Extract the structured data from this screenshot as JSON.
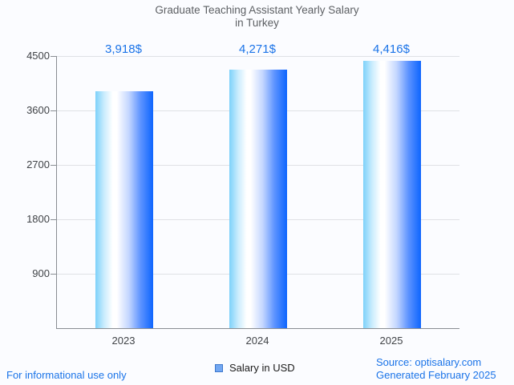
{
  "title": {
    "line1": "Graduate Teaching Assistant Yearly Salary",
    "line2": "in Turkey"
  },
  "chart_data": {
    "type": "bar",
    "title": "Graduate Teaching Assistant Yearly Salary in Turkey",
    "categories": [
      "2023",
      "2024",
      "2025"
    ],
    "values": [
      3918,
      4271,
      4416
    ],
    "value_labels": [
      "3,918$",
      "4,271$",
      "4,416$"
    ],
    "xlabel": "",
    "ylabel": "",
    "ylim": [
      0,
      4500
    ],
    "yticks": [
      900,
      1800,
      2700,
      3600,
      4500
    ],
    "grid": true,
    "legend_position": "bottom",
    "series_name": "Salary in USD"
  },
  "legend": {
    "label": "Salary in USD"
  },
  "footer": {
    "left_note": "For informational use only",
    "source_line1": "Source: optisalary.com",
    "source_line2": "Generated February 2025"
  },
  "colors": {
    "value_label_blue": "#1a73e8",
    "footer_blue": "#1a73e8",
    "title_gray": "#5c5f63",
    "axis_text": "#404347",
    "axis_line": "#898d92",
    "gridline": "#dfe1e5",
    "bar_gradient_left": "#7cd1fa",
    "bar_gradient_mid": "#ffffff",
    "bar_gradient_right": "#0d65fe",
    "legend_fill": "#72a7f2",
    "legend_border": "#3e78cc",
    "background": "#fbfcff"
  }
}
